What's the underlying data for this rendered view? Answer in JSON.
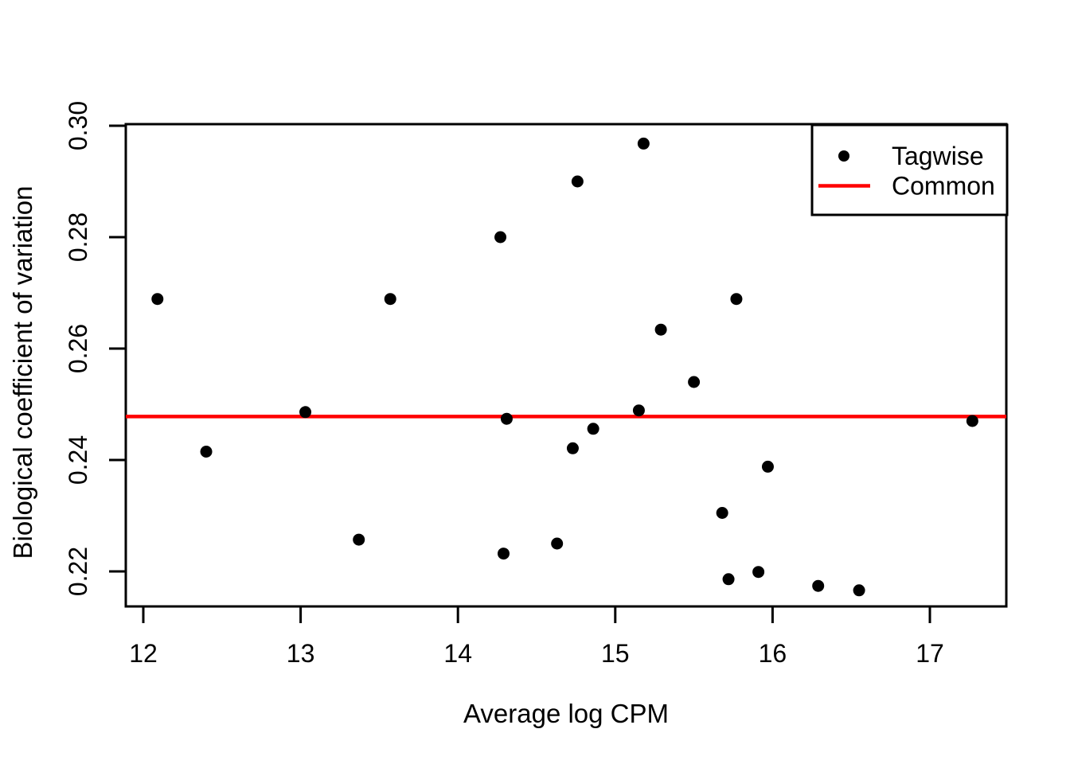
{
  "chart_data": {
    "type": "scatter",
    "title": "",
    "xlabel": "Average log CPM",
    "ylabel": "Biological coefficient of variation",
    "xlim": [
      11.89,
      17.49
    ],
    "ylim": [
      0.2136,
      0.3003
    ],
    "x_ticks": [
      "12",
      "13",
      "14",
      "15",
      "16",
      "17"
    ],
    "y_ticks": [
      "0.22",
      "0.24",
      "0.26",
      "0.28",
      "0.30"
    ],
    "grid": false,
    "background_color": "#ffffff",
    "axis_color": "#000000",
    "series": [
      {
        "name": "Tagwise",
        "kind": "points",
        "color": "#000000",
        "points": [
          [
            12.09,
            0.2689
          ],
          [
            12.4,
            0.2415
          ],
          [
            13.03,
            0.2486
          ],
          [
            13.37,
            0.2257
          ],
          [
            13.57,
            0.2689
          ],
          [
            14.27,
            0.28
          ],
          [
            14.29,
            0.2232
          ],
          [
            14.31,
            0.2474
          ],
          [
            14.63,
            0.225
          ],
          [
            14.73,
            0.2421
          ],
          [
            14.76,
            0.29
          ],
          [
            14.86,
            0.2456
          ],
          [
            15.15,
            0.2489
          ],
          [
            15.18,
            0.2968
          ],
          [
            15.29,
            0.2634
          ],
          [
            15.5,
            0.254
          ],
          [
            15.68,
            0.2305
          ],
          [
            15.72,
            0.2186
          ],
          [
            15.77,
            0.2689
          ],
          [
            15.91,
            0.2199
          ],
          [
            15.97,
            0.2388
          ],
          [
            16.29,
            0.2174
          ],
          [
            16.55,
            0.2166
          ],
          [
            17.27,
            0.247
          ]
        ]
      },
      {
        "name": "Common",
        "kind": "hline",
        "color": "#ff0000",
        "value": 0.2478
      }
    ],
    "legend": {
      "position": "top-right",
      "items": [
        {
          "label": "Tagwise",
          "marker": "point",
          "color": "#000000"
        },
        {
          "label": "Common",
          "marker": "line",
          "color": "#ff0000"
        }
      ]
    }
  }
}
